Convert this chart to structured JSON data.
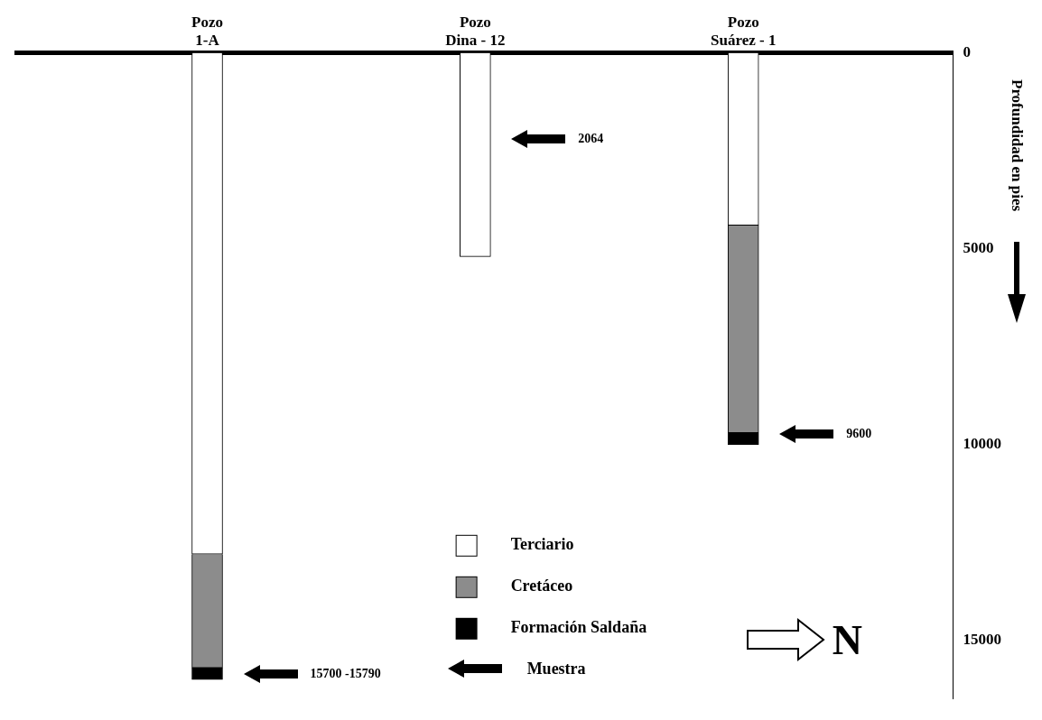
{
  "chart_data": {
    "type": "bar",
    "stacked": true,
    "categories": [
      "Pozo 1-A",
      "Pozo Dina - 12",
      "Pozo Suárez - 1"
    ],
    "ylabel": "Profundidad en pies",
    "ylim": [
      16500,
      0
    ],
    "yticks": [
      0,
      5000,
      10000,
      15000
    ],
    "grid": false,
    "legend": "bottom",
    "series": [
      {
        "name": "Terciario",
        "color": "#ffffff",
        "values": [
          12800,
          5200,
          4400
        ]
      },
      {
        "name": "Cretáceo",
        "color": "#8c8c8c",
        "values": [
          2900,
          null,
          5300
        ]
      },
      {
        "name": "Formación Saldaña",
        "color": "#000000",
        "values": [
          300,
          null,
          300
        ]
      }
    ],
    "annotations": [
      "15700 -15790",
      "2064",
      "9600",
      "Muestra",
      "N"
    ]
  }
}
